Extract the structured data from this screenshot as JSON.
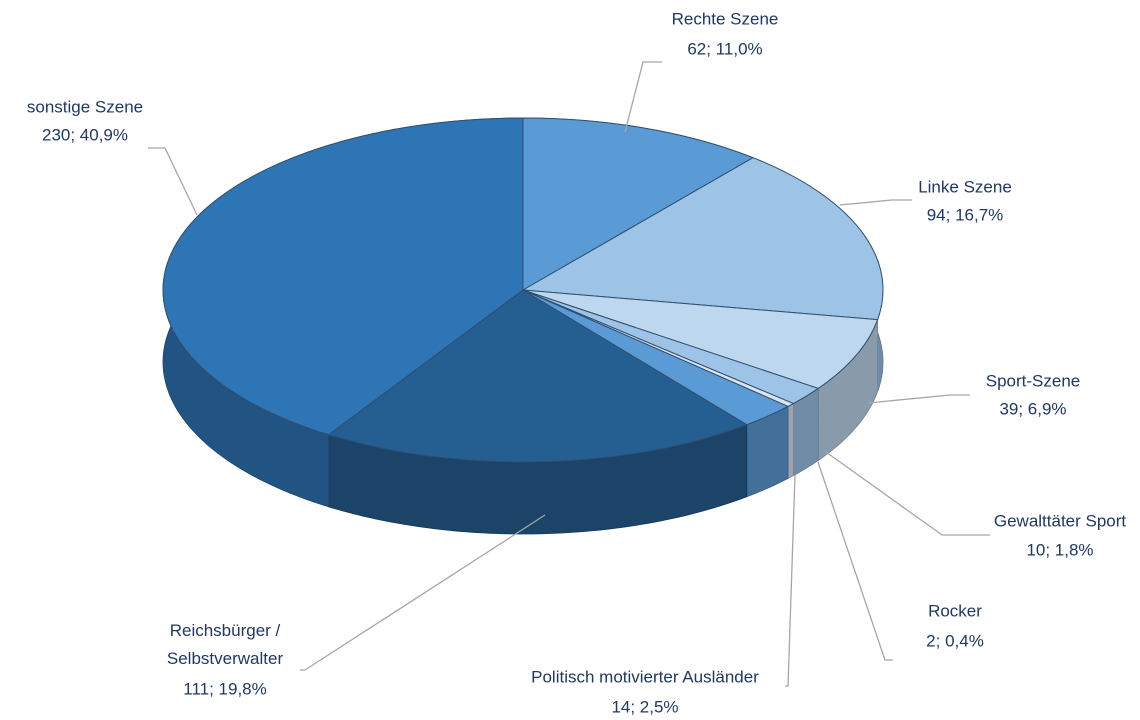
{
  "chart_data": {
    "type": "pie",
    "categories": [
      "Rechte Szene",
      "Linke Szene",
      "Sport-Szene",
      "Gewalttäter Sport",
      "Rocker",
      "Politisch motivierter Ausländer",
      "Reichsbürger / Selbstverwalter",
      "sonstige Szene"
    ],
    "values": [
      62,
      94,
      39,
      10,
      2,
      14,
      111,
      230
    ],
    "value_labels": [
      "62; 11,0%",
      "94; 16,7%",
      "39; 6,9%",
      "10; 1,8%",
      "2; 0,4%",
      "14; 2,5%",
      "111; 19,8%",
      "230; 40,9%"
    ],
    "colors": [
      "#5b9bd5",
      "#9dc3e6",
      "#bdd7ee",
      "#9dc3e6",
      "#dae3f3",
      "#5b9bd5",
      "#255e91",
      "#2e75b6"
    ]
  }
}
